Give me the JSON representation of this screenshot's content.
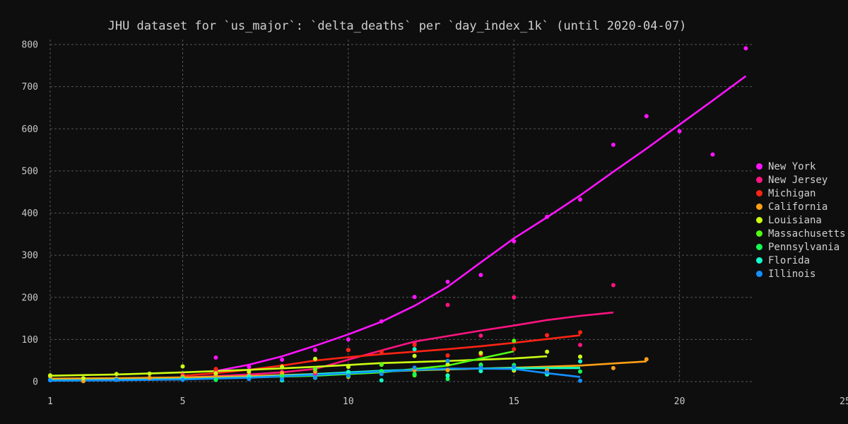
{
  "chart_data": {
    "type": "scatter",
    "title": "JHU dataset for `us_major`: `delta_deaths` per `day_index_1k` (until 2020-04-07)",
    "xlabel": "",
    "ylabel": "",
    "xlim": [
      1,
      25
    ],
    "ylim": [
      0,
      810
    ],
    "x_ticks": [
      1,
      5,
      10,
      15,
      20,
      25
    ],
    "y_ticks": [
      0,
      100,
      200,
      300,
      400,
      500,
      600,
      700,
      800
    ],
    "grid": true,
    "legend_position": "right",
    "series": [
      {
        "name": "New York",
        "color": "#ff14ff",
        "points": [
          [
            5,
            14
          ],
          [
            6,
            57
          ],
          [
            7,
            35
          ],
          [
            8,
            52
          ],
          [
            9,
            75
          ],
          [
            10,
            100
          ],
          [
            11,
            143
          ],
          [
            12,
            201
          ],
          [
            13,
            237
          ],
          [
            14,
            253
          ],
          [
            15,
            333
          ],
          [
            16,
            391
          ],
          [
            17,
            432
          ],
          [
            18,
            562
          ],
          [
            19,
            630
          ],
          [
            20,
            594
          ],
          [
            21,
            539
          ],
          [
            22,
            791
          ]
        ],
        "trend": [
          [
            6,
            25
          ],
          [
            7,
            40
          ],
          [
            8,
            60
          ],
          [
            9,
            85
          ],
          [
            10,
            112
          ],
          [
            11,
            142
          ],
          [
            12,
            180
          ],
          [
            13,
            225
          ],
          [
            14,
            283
          ],
          [
            15,
            340
          ],
          [
            16,
            390
          ],
          [
            17,
            442
          ],
          [
            18,
            498
          ],
          [
            19,
            553
          ],
          [
            20,
            610
          ],
          [
            21,
            667
          ],
          [
            22,
            725
          ]
        ]
      },
      {
        "name": "New Jersey",
        "color": "#ff1480",
        "points": [
          [
            5,
            16
          ],
          [
            6,
            24
          ],
          [
            7,
            18
          ],
          [
            8,
            23
          ],
          [
            9,
            18
          ],
          [
            10,
            75
          ],
          [
            11,
            71
          ],
          [
            12,
            92
          ],
          [
            13,
            62
          ],
          [
            13,
            182
          ],
          [
            14,
            109
          ],
          [
            15,
            200
          ],
          [
            16,
            110
          ],
          [
            17,
            87
          ],
          [
            18,
            229
          ]
        ],
        "trend": [
          [
            5,
            10
          ],
          [
            6,
            13
          ],
          [
            7,
            17
          ],
          [
            8,
            22
          ],
          [
            9,
            30
          ],
          [
            10,
            52
          ],
          [
            11,
            74
          ],
          [
            12,
            95
          ],
          [
            13,
            108
          ],
          [
            14,
            121
          ],
          [
            15,
            133
          ],
          [
            16,
            146
          ],
          [
            17,
            156
          ],
          [
            18,
            164
          ]
        ]
      },
      {
        "name": "Michigan",
        "color": "#ff2414",
        "points": [
          [
            5,
            14
          ],
          [
            6,
            30
          ],
          [
            7,
            22
          ],
          [
            8,
            37
          ],
          [
            9,
            52
          ],
          [
            10,
            75
          ],
          [
            11,
            71
          ],
          [
            12,
            87
          ],
          [
            13,
            62
          ],
          [
            14,
            64
          ],
          [
            15,
            77
          ],
          [
            16,
            110
          ],
          [
            17,
            117
          ]
        ],
        "trend": [
          [
            5,
            14
          ],
          [
            6,
            20
          ],
          [
            7,
            28
          ],
          [
            8,
            38
          ],
          [
            9,
            50
          ],
          [
            10,
            58
          ],
          [
            11,
            65
          ],
          [
            12,
            71
          ],
          [
            13,
            77
          ],
          [
            14,
            84
          ],
          [
            15,
            92
          ],
          [
            16,
            101
          ],
          [
            17,
            110
          ]
        ]
      },
      {
        "name": "California",
        "color": "#ffa014",
        "points": [
          [
            1,
            12
          ],
          [
            2,
            1
          ],
          [
            3,
            7
          ],
          [
            4,
            9
          ],
          [
            5,
            12
          ],
          [
            6,
            15
          ],
          [
            7,
            15
          ],
          [
            8,
            20
          ],
          [
            9,
            24
          ],
          [
            10,
            11
          ],
          [
            11,
            24
          ],
          [
            12,
            27
          ],
          [
            13,
            27
          ],
          [
            14,
            40
          ],
          [
            15,
            26
          ],
          [
            16,
            27
          ],
          [
            17,
            59
          ],
          [
            18,
            32
          ],
          [
            19,
            53
          ]
        ],
        "trend": [
          [
            1,
            7
          ],
          [
            3,
            8
          ],
          [
            5,
            10
          ],
          [
            7,
            13
          ],
          [
            9,
            18
          ],
          [
            11,
            24
          ],
          [
            13,
            29
          ],
          [
            15,
            33
          ],
          [
            17,
            38
          ],
          [
            19,
            48
          ]
        ]
      },
      {
        "name": "Louisiana",
        "color": "#ccff14",
        "points": [
          [
            1,
            15
          ],
          [
            2,
            8
          ],
          [
            3,
            18
          ],
          [
            4,
            19
          ],
          [
            5,
            36
          ],
          [
            6,
            20
          ],
          [
            7,
            24
          ],
          [
            8,
            35
          ],
          [
            9,
            54
          ],
          [
            10,
            35
          ],
          [
            11,
            40
          ],
          [
            12,
            61
          ],
          [
            13,
            41
          ],
          [
            14,
            68
          ],
          [
            15,
            27
          ],
          [
            16,
            71
          ],
          [
            17,
            59
          ]
        ],
        "trend": [
          [
            1,
            14
          ],
          [
            3,
            17
          ],
          [
            5,
            22
          ],
          [
            7,
            28
          ],
          [
            9,
            35
          ],
          [
            11,
            44
          ],
          [
            13,
            49
          ],
          [
            15,
            55
          ],
          [
            16,
            60
          ]
        ]
      },
      {
        "name": "Massachusetts",
        "color": "#50ff14",
        "points": [
          [
            7,
            9
          ],
          [
            8,
            13
          ],
          [
            9,
            30
          ],
          [
            10,
            20
          ],
          [
            11,
            40
          ],
          [
            12,
            15
          ],
          [
            13,
            15
          ],
          [
            14,
            38
          ],
          [
            15,
            97
          ]
        ],
        "trend": [
          [
            7,
            10
          ],
          [
            9,
            14
          ],
          [
            11,
            22
          ],
          [
            13,
            38
          ],
          [
            15,
            72
          ]
        ]
      },
      {
        "name": "Pennsylvania",
        "color": "#14ff50",
        "points": [
          [
            5,
            8
          ],
          [
            6,
            4
          ],
          [
            7,
            12
          ],
          [
            8,
            12
          ],
          [
            9,
            10
          ],
          [
            10,
            13
          ],
          [
            11,
            25
          ],
          [
            12,
            18
          ],
          [
            13,
            6
          ],
          [
            14,
            40
          ],
          [
            15,
            39
          ],
          [
            16,
            20
          ],
          [
            17,
            24
          ]
        ],
        "trend": [
          [
            5,
            6
          ],
          [
            7,
            10
          ],
          [
            9,
            15
          ],
          [
            11,
            24
          ],
          [
            13,
            30
          ],
          [
            15,
            32
          ],
          [
            17,
            33
          ]
        ]
      },
      {
        "name": "Florida",
        "color": "#14ffcc",
        "points": [
          [
            1,
            4
          ],
          [
            3,
            5
          ],
          [
            5,
            6
          ],
          [
            7,
            12
          ],
          [
            8,
            3
          ],
          [
            9,
            9
          ],
          [
            10,
            23
          ],
          [
            11,
            3
          ],
          [
            12,
            77
          ],
          [
            13,
            14
          ],
          [
            14,
            25
          ],
          [
            15,
            30
          ],
          [
            16,
            17
          ],
          [
            17,
            48
          ]
        ],
        "trend": [
          [
            1,
            3
          ],
          [
            3,
            4
          ],
          [
            5,
            6
          ],
          [
            7,
            10
          ],
          [
            9,
            18
          ],
          [
            11,
            26
          ],
          [
            13,
            30
          ],
          [
            15,
            32
          ],
          [
            17,
            32
          ]
        ]
      },
      {
        "name": "Illinois",
        "color": "#1490ff",
        "points": [
          [
            1,
            3
          ],
          [
            3,
            4
          ],
          [
            5,
            4
          ],
          [
            7,
            6
          ],
          [
            8,
            6
          ],
          [
            9,
            10
          ],
          [
            10,
            15
          ],
          [
            11,
            18
          ],
          [
            12,
            33
          ],
          [
            13,
            49
          ],
          [
            14,
            33
          ],
          [
            15,
            35
          ],
          [
            16,
            22
          ],
          [
            17,
            2
          ]
        ],
        "trend": [
          [
            1,
            2
          ],
          [
            3,
            3
          ],
          [
            5,
            5
          ],
          [
            7,
            9
          ],
          [
            9,
            16
          ],
          [
            11,
            24
          ],
          [
            13,
            31
          ],
          [
            15,
            30
          ],
          [
            16,
            20
          ],
          [
            17,
            11
          ]
        ]
      }
    ]
  }
}
